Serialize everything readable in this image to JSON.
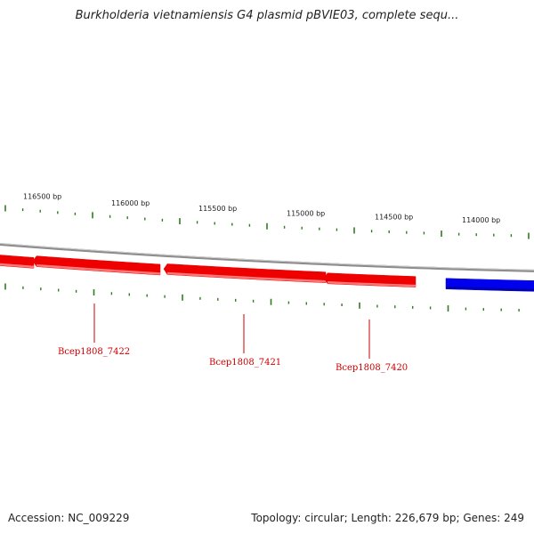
{
  "header": {
    "title": "Burkholderia vietnamiensis G4 plasmid pBVIE03, complete sequ..."
  },
  "footer": {
    "accession": "Accession: NC_009229",
    "summary": "Topology: circular; Length: 226,679 bp; Genes: 249"
  },
  "colors": {
    "backbone": "#8c8c8c",
    "tick": "#2e7d1e",
    "gene_forward": "#0000ee",
    "gene_reverse": "#ee0000",
    "gene_label": "#cc0000"
  },
  "scale_ticks": [
    "116500 bp",
    "116000 bp",
    "115500 bp",
    "115000 bp",
    "114500 bp",
    "114000 bp"
  ],
  "genes": [
    {
      "strand": "reverse",
      "label": ""
    },
    {
      "strand": "reverse",
      "label": "Bcep1808_7422"
    },
    {
      "strand": "reverse",
      "label": "Bcep1808_7421"
    },
    {
      "strand": "reverse",
      "label": "Bcep1808_7420"
    },
    {
      "strand": "forward",
      "label": ""
    }
  ]
}
